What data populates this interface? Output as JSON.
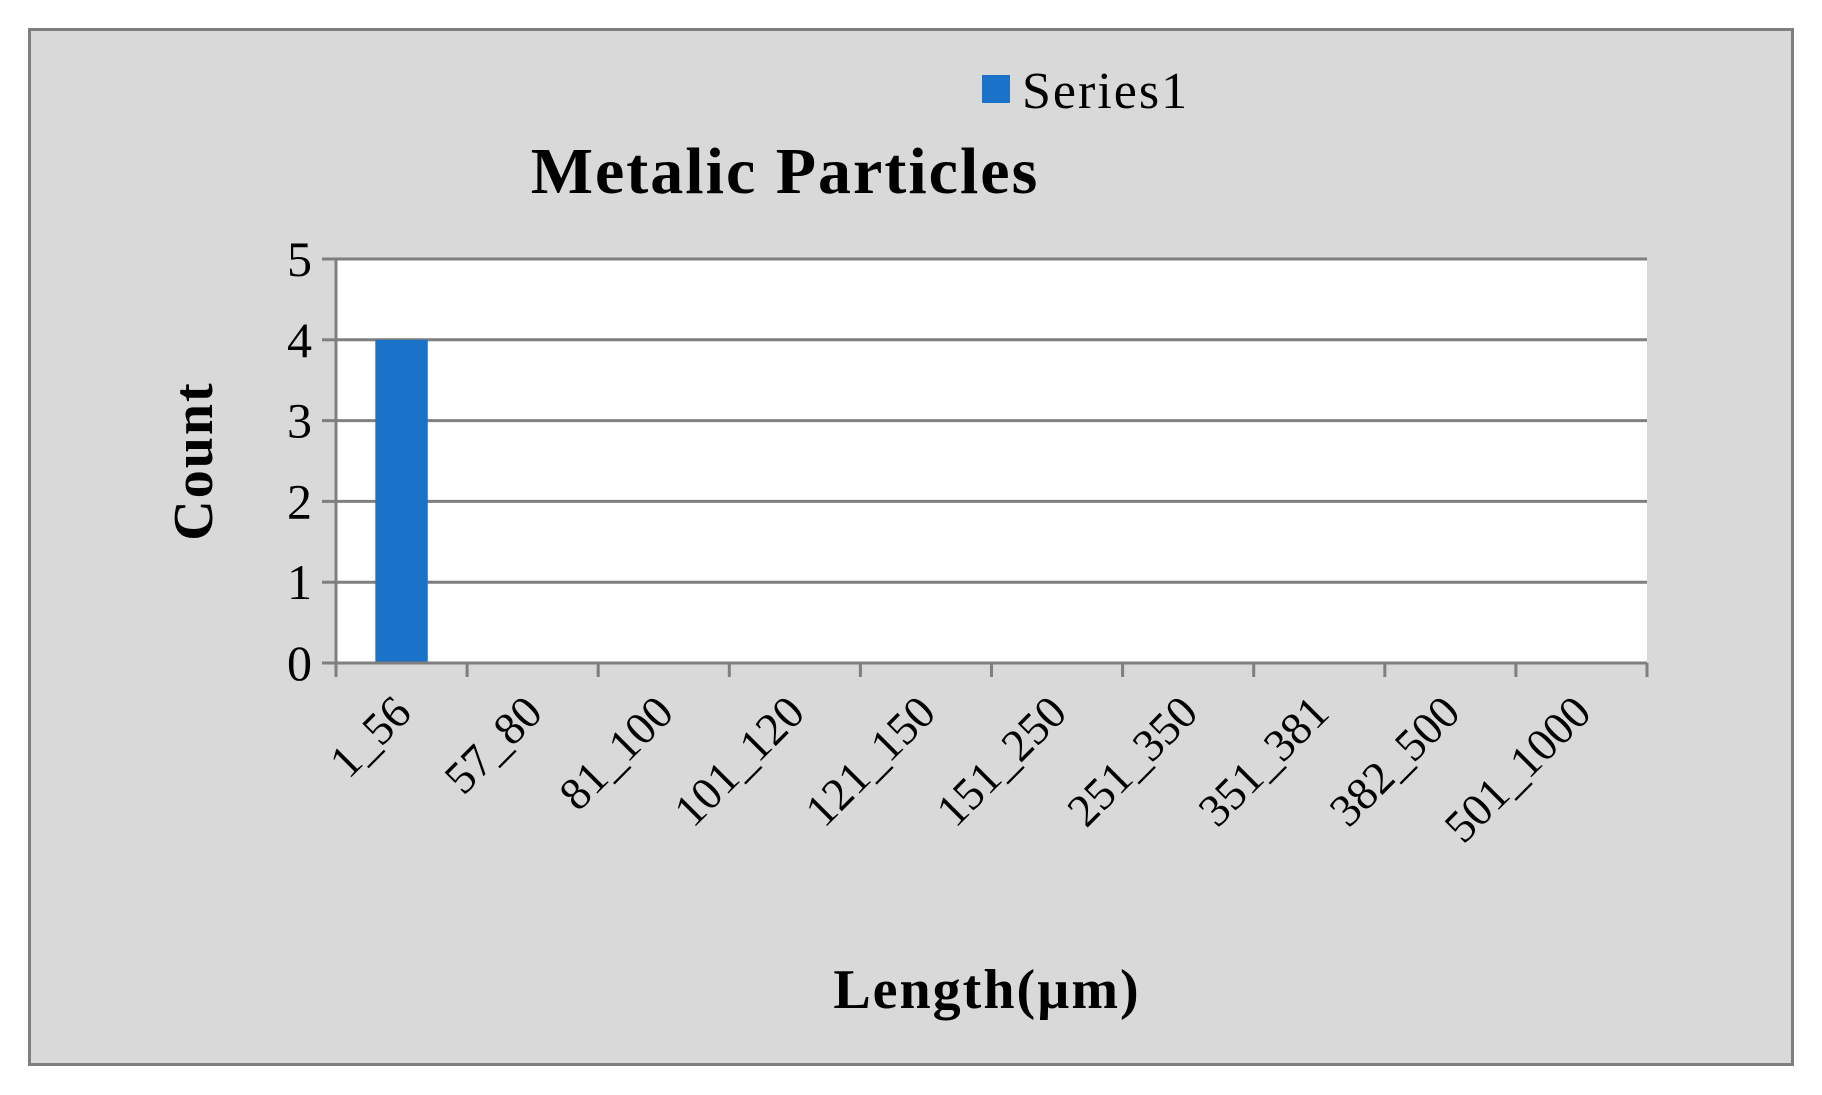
{
  "chart_data": {
    "type": "bar",
    "title": "Metalic Particles",
    "xlabel": "Length(µm)",
    "ylabel": "Count",
    "categories": [
      "1_56",
      "57_80",
      "81_100",
      "101_120",
      "121_150",
      "151_250",
      "251_350",
      "351_381",
      "382_500",
      "501_1000"
    ],
    "series": [
      {
        "name": "Series1",
        "values": [
          4,
          0,
          0,
          0,
          0,
          0,
          0,
          0,
          0,
          0
        ],
        "color": "#1a73c8"
      }
    ],
    "ylim": [
      0,
      5
    ],
    "yticks": [
      "0",
      "1",
      "2",
      "3",
      "4",
      "5"
    ],
    "grid": true,
    "legend": "top",
    "colors": {
      "background": "#d9d9d9",
      "plot": "#ffffff",
      "grid": "#7f7f7f",
      "frame": "#7f7f7f"
    }
  }
}
